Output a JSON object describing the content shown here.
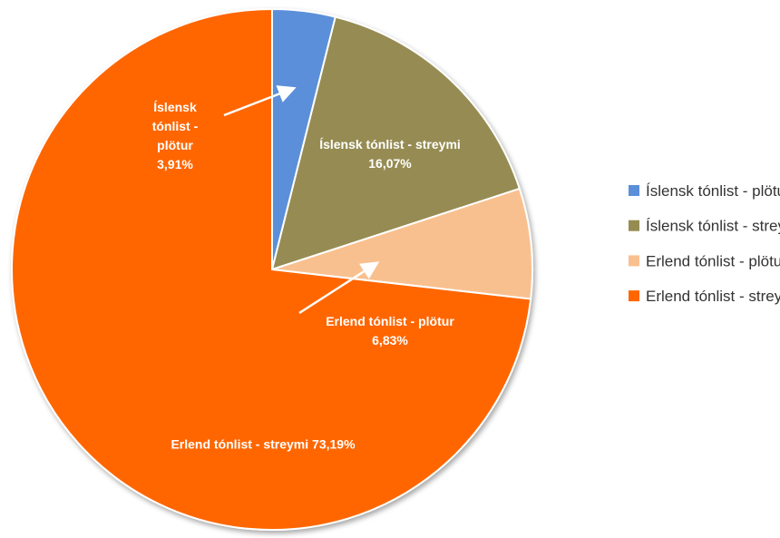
{
  "chart_data": {
    "type": "pie",
    "categories": [
      "Íslensk tónlist - plötur",
      "Íslensk tónlist - streymi",
      "Erlend tónlist - plötur",
      "Erlend tónlist - streymi"
    ],
    "values": [
      3.91,
      16.07,
      6.83,
      73.19
    ],
    "value_labels": [
      "3,91%",
      "16,07%",
      "6,83%",
      "73,19%"
    ],
    "colors": [
      "#5b8fd9",
      "#968c52",
      "#f9c08f",
      "#ff6600"
    ],
    "legend": "right"
  }
}
